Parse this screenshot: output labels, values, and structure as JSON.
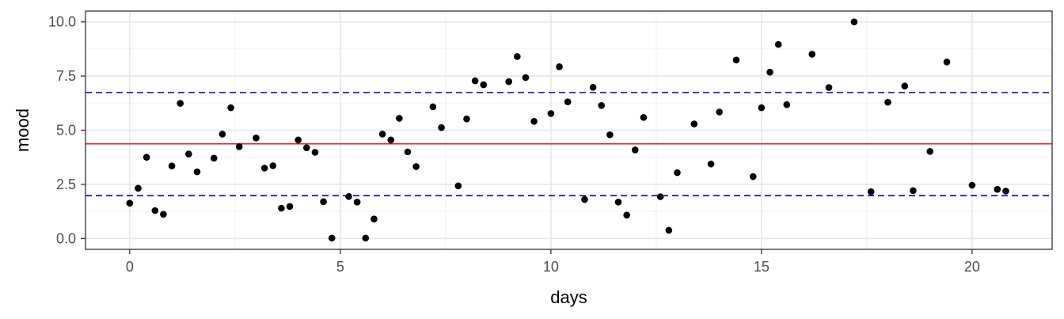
{
  "chart_data": {
    "type": "scatter",
    "xlabel": "days",
    "ylabel": "mood",
    "xlim": [
      -1.05,
      21.9
    ],
    "ylim": [
      -0.5,
      10.5
    ],
    "x_ticks": [
      0,
      5,
      10,
      15,
      20
    ],
    "x_tick_labels": [
      "0",
      "5",
      "10",
      "15",
      "20"
    ],
    "y_ticks": [
      0,
      2.5,
      5,
      7.5,
      10
    ],
    "y_tick_labels": [
      "0.0",
      "2.5",
      "5.0",
      "7.5",
      "10.0"
    ],
    "grid": true,
    "point_color": "#000000",
    "reference_lines": [
      {
        "kind": "mean",
        "y": 4.37,
        "color": "#e41a1c",
        "style": "solid"
      },
      {
        "kind": "upper",
        "y": 6.74,
        "color": "#0000ee",
        "style": "dashed"
      },
      {
        "kind": "lower",
        "y": 1.98,
        "color": "#0000ee",
        "style": "dashed"
      }
    ],
    "points": [
      {
        "x": 0.0,
        "y": 1.63
      },
      {
        "x": 0.2,
        "y": 2.32
      },
      {
        "x": 0.4,
        "y": 3.75
      },
      {
        "x": 0.6,
        "y": 1.29
      },
      {
        "x": 0.8,
        "y": 1.12
      },
      {
        "x": 1.0,
        "y": 3.35
      },
      {
        "x": 1.2,
        "y": 6.24
      },
      {
        "x": 1.4,
        "y": 3.9
      },
      {
        "x": 1.6,
        "y": 3.08
      },
      {
        "x": 2.0,
        "y": 3.71
      },
      {
        "x": 2.2,
        "y": 4.82
      },
      {
        "x": 2.4,
        "y": 6.04
      },
      {
        "x": 2.6,
        "y": 4.24
      },
      {
        "x": 3.0,
        "y": 4.64
      },
      {
        "x": 3.2,
        "y": 3.25
      },
      {
        "x": 3.4,
        "y": 3.36
      },
      {
        "x": 3.6,
        "y": 1.4
      },
      {
        "x": 3.8,
        "y": 1.48
      },
      {
        "x": 4.0,
        "y": 4.55
      },
      {
        "x": 4.2,
        "y": 4.19
      },
      {
        "x": 4.4,
        "y": 3.98
      },
      {
        "x": 4.6,
        "y": 1.7
      },
      {
        "x": 4.8,
        "y": 0.02
      },
      {
        "x": 5.2,
        "y": 1.94
      },
      {
        "x": 5.4,
        "y": 1.68
      },
      {
        "x": 5.6,
        "y": 0.02
      },
      {
        "x": 5.8,
        "y": 0.9
      },
      {
        "x": 6.0,
        "y": 4.82
      },
      {
        "x": 6.2,
        "y": 4.55
      },
      {
        "x": 6.4,
        "y": 5.55
      },
      {
        "x": 6.6,
        "y": 4.0
      },
      {
        "x": 6.8,
        "y": 3.32
      },
      {
        "x": 7.2,
        "y": 6.08
      },
      {
        "x": 7.4,
        "y": 5.12
      },
      {
        "x": 7.8,
        "y": 2.43
      },
      {
        "x": 8.0,
        "y": 5.52
      },
      {
        "x": 8.2,
        "y": 7.28
      },
      {
        "x": 8.4,
        "y": 7.1
      },
      {
        "x": 9.0,
        "y": 7.24
      },
      {
        "x": 9.2,
        "y": 8.4
      },
      {
        "x": 9.4,
        "y": 7.43
      },
      {
        "x": 9.6,
        "y": 5.41
      },
      {
        "x": 10.0,
        "y": 5.77
      },
      {
        "x": 10.2,
        "y": 7.93
      },
      {
        "x": 10.4,
        "y": 6.31
      },
      {
        "x": 10.8,
        "y": 1.8
      },
      {
        "x": 11.0,
        "y": 6.98
      },
      {
        "x": 11.2,
        "y": 6.14
      },
      {
        "x": 11.4,
        "y": 4.79
      },
      {
        "x": 11.6,
        "y": 1.68
      },
      {
        "x": 11.8,
        "y": 1.08
      },
      {
        "x": 12.0,
        "y": 4.09
      },
      {
        "x": 12.2,
        "y": 5.59
      },
      {
        "x": 12.6,
        "y": 1.93
      },
      {
        "x": 12.8,
        "y": 0.38
      },
      {
        "x": 13.0,
        "y": 3.04
      },
      {
        "x": 13.4,
        "y": 5.29
      },
      {
        "x": 13.8,
        "y": 3.44
      },
      {
        "x": 14.0,
        "y": 5.84
      },
      {
        "x": 14.4,
        "y": 8.24
      },
      {
        "x": 14.8,
        "y": 2.86
      },
      {
        "x": 15.0,
        "y": 6.04
      },
      {
        "x": 15.2,
        "y": 7.68
      },
      {
        "x": 15.4,
        "y": 8.96
      },
      {
        "x": 15.6,
        "y": 6.18
      },
      {
        "x": 16.2,
        "y": 8.51
      },
      {
        "x": 16.6,
        "y": 6.97
      },
      {
        "x": 17.2,
        "y": 10.0
      },
      {
        "x": 17.6,
        "y": 2.16
      },
      {
        "x": 18.0,
        "y": 6.29
      },
      {
        "x": 18.4,
        "y": 7.04
      },
      {
        "x": 18.6,
        "y": 2.21
      },
      {
        "x": 19.0,
        "y": 4.02
      },
      {
        "x": 19.4,
        "y": 8.15
      },
      {
        "x": 20.0,
        "y": 2.46
      },
      {
        "x": 20.6,
        "y": 2.27
      },
      {
        "x": 20.8,
        "y": 2.19
      }
    ]
  }
}
